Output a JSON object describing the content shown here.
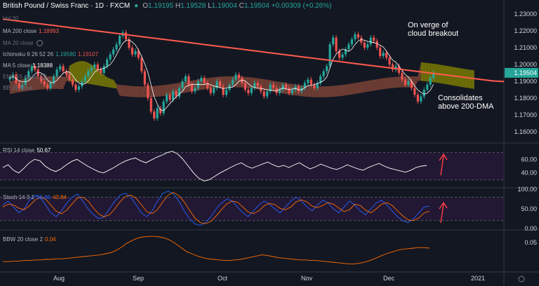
{
  "header": {
    "symbol": "British Pound / Swiss Franc · 1D · FXCM",
    "o_label": "O",
    "o": "1.19195",
    "h_label": "H",
    "h": "1.19528",
    "l_label": "L",
    "l": "1.19004",
    "c_label": "C",
    "c": "1.19504",
    "change": "+0.00309 (+0.26%)"
  },
  "indicators": {
    "vol": "Vol 20",
    "ma200_label": "MA 200 close",
    "ma200_value": "1.18993",
    "ma20_label": "MA 20 close",
    "ichimoku_label": "Ichimoku 9 26 52 26",
    "ichimoku_v1": "1.19580",
    "ichimoku_v2": "1.19107",
    "ma5_label": "MA 5 close",
    "ma5_value": "1.18388",
    "ema55_label": "EMA 55 close",
    "extra_label": "BB 20 close",
    "rsi_label": "RSI 14 close",
    "rsi_value": "50.67",
    "stoch_label": "Stoch 14 3 1",
    "stoch_k": "56.86",
    "stoch_d": "43.84",
    "bbw_label": "BBW 20 close 2",
    "bbw_value": "0.04"
  },
  "annotations": {
    "cloud_breakout": [
      "On verge of",
      "cloud breakout"
    ],
    "consolidates": [
      "Consolidates",
      "above 200-DMA"
    ]
  },
  "colors": {
    "background": "#131722",
    "up": "#26a69a",
    "down": "#ef5350",
    "ma200": "#ff5a4e",
    "cloud_bull": "#8a8a00",
    "cloud_bear": "#8a4a3a",
    "rsi_line": "#ffffff",
    "stoch_k": "#2962ff",
    "stoch_d": "#ff6d00",
    "bbw_line": "#ff6d00",
    "panel_fill": "#2a1a3a",
    "arrow": "#ff4040"
  },
  "chart_data": {
    "type": "line",
    "x_labels": [
      "Aug",
      "Sep",
      "Oct",
      "Nov",
      "Dec",
      "2021"
    ],
    "price_axis": {
      "ticks": [
        "1.23000",
        "1.22000",
        "1.21000",
        "1.20000",
        "1.19000",
        "1.18000",
        "1.17000",
        "1.16000"
      ],
      "ylim": [
        1.155,
        1.235
      ],
      "last_price": "1.19504"
    },
    "rsi_axis": {
      "ticks": [
        "60.00",
        "40.00"
      ],
      "ylim": [
        20,
        80
      ],
      "upper": 70,
      "lower": 30
    },
    "stoch_axis": {
      "ticks": [
        "100.00",
        "50.00",
        "0.00"
      ],
      "ylim": [
        0,
        100
      ],
      "upper": 80,
      "lower": 20
    },
    "bbw_axis": {
      "ticks": [
        "0.05"
      ],
      "ylim": [
        0,
        0.07
      ]
    },
    "price_close": [
      1.192,
      1.194,
      1.189,
      1.186,
      1.188,
      1.192,
      1.196,
      1.199,
      1.197,
      1.193,
      1.19,
      1.188,
      1.186,
      1.189,
      1.193,
      1.197,
      1.199,
      1.196,
      1.194,
      1.191,
      1.188,
      1.185,
      1.187,
      1.19,
      1.193,
      1.196,
      1.198,
      1.2,
      1.197,
      1.195,
      1.199,
      1.203,
      1.206,
      1.209,
      1.212,
      1.217,
      1.219,
      1.215,
      1.21,
      1.206,
      1.208,
      1.204,
      1.196,
      1.188,
      1.18,
      1.172,
      1.168,
      1.174,
      1.171,
      1.178,
      1.182,
      1.179,
      1.184,
      1.181,
      1.186,
      1.19,
      1.193,
      1.188,
      1.184,
      1.186,
      1.19,
      1.192,
      1.189,
      1.186,
      1.183,
      1.186,
      1.19,
      1.187,
      1.182,
      1.185,
      1.188,
      1.191,
      1.194,
      1.192,
      1.189,
      1.185,
      1.183,
      1.186,
      1.189,
      1.187,
      1.184,
      1.181,
      1.184,
      1.188,
      1.186,
      1.183,
      1.185,
      1.188,
      1.186,
      1.183,
      1.185,
      1.187,
      1.184,
      1.186,
      1.189,
      1.191,
      1.188,
      1.186,
      1.189,
      1.193,
      1.196,
      1.199,
      1.212,
      1.216,
      1.208,
      1.204,
      1.206,
      1.209,
      1.212,
      1.215,
      1.218,
      1.216,
      1.213,
      1.21,
      1.212,
      1.216,
      1.214,
      1.21,
      1.205,
      1.207,
      1.204,
      1.2,
      1.197,
      1.199,
      1.195,
      1.191,
      1.188,
      1.19,
      1.186,
      1.182,
      1.178,
      1.181,
      1.185,
      1.188,
      1.192,
      1.195
    ],
    "ma200": [
      1.227,
      1.2262,
      1.2254,
      1.2246,
      1.2238,
      1.223,
      1.2222,
      1.2214,
      1.2206,
      1.2198,
      1.219,
      1.2182,
      1.2174,
      1.2166,
      1.2158,
      1.215,
      1.2142,
      1.2134,
      1.2126,
      1.2118,
      1.211,
      1.2102,
      1.2094,
      1.2086,
      1.2078,
      1.207,
      1.2062,
      1.2054,
      1.2046,
      1.2038,
      1.203,
      1.2022,
      1.2014,
      1.2006,
      1.1998,
      1.199,
      1.1982,
      1.1974,
      1.1966,
      1.1958,
      1.195,
      1.1942,
      1.1934,
      1.1926,
      1.1918,
      1.191,
      1.1902,
      1.1899
    ],
    "rsi": [
      48,
      52,
      44,
      40,
      47,
      55,
      60,
      58,
      50,
      45,
      42,
      46,
      52,
      57,
      60,
      55,
      50,
      46,
      42,
      40,
      44,
      48,
      53,
      57,
      60,
      62,
      58,
      55,
      59,
      63,
      66,
      70,
      72,
      68,
      60,
      50,
      40,
      32,
      28,
      30,
      35,
      40,
      44,
      48,
      52,
      55,
      50,
      47,
      50,
      53,
      56,
      52,
      49,
      51,
      48,
      52,
      55,
      50,
      46,
      49,
      53,
      50,
      47,
      45,
      48,
      52,
      49,
      46,
      44,
      48,
      51,
      54,
      50,
      47,
      45,
      43,
      41,
      44,
      48,
      50,
      51
    ],
    "stoch_k": [
      60,
      70,
      55,
      40,
      50,
      72,
      85,
      80,
      60,
      40,
      30,
      45,
      65,
      80,
      88,
      70,
      50,
      35,
      25,
      30,
      50,
      70,
      85,
      90,
      80,
      60,
      40,
      30,
      45,
      70,
      90,
      95,
      88,
      70,
      45,
      25,
      12,
      8,
      15,
      30,
      50,
      65,
      75,
      70,
      55,
      40,
      30,
      45,
      60,
      70,
      62,
      50,
      40,
      55,
      70,
      80,
      70,
      55,
      45,
      60,
      72,
      65,
      50,
      40,
      55,
      70,
      60,
      45,
      35,
      50,
      65,
      72,
      60,
      45,
      30,
      20,
      15,
      25,
      40,
      55,
      57
    ],
    "stoch_d": [
      55,
      62,
      60,
      52,
      48,
      58,
      72,
      80,
      75,
      60,
      44,
      38,
      47,
      63,
      78,
      80,
      70,
      52,
      37,
      30,
      35,
      50,
      68,
      82,
      85,
      77,
      60,
      43,
      38,
      48,
      68,
      85,
      92,
      84,
      68,
      47,
      27,
      15,
      12,
      18,
      32,
      48,
      63,
      70,
      67,
      55,
      42,
      38,
      45,
      58,
      64,
      61,
      51,
      48,
      55,
      68,
      73,
      68,
      57,
      53,
      59,
      66,
      62,
      52,
      43,
      48,
      62,
      59,
      47,
      40,
      50,
      62,
      66,
      59,
      45,
      32,
      22,
      20,
      27,
      40,
      44
    ],
    "bbw": [
      0.016,
      0.016,
      0.017,
      0.017,
      0.018,
      0.018,
      0.019,
      0.019,
      0.02,
      0.02,
      0.021,
      0.021,
      0.022,
      0.023,
      0.024,
      0.025,
      0.026,
      0.027,
      0.028,
      0.03,
      0.032,
      0.036,
      0.042,
      0.049,
      0.054,
      0.058,
      0.06,
      0.061,
      0.061,
      0.06,
      0.058,
      0.054,
      0.048,
      0.041,
      0.034,
      0.03,
      0.026,
      0.023,
      0.021,
      0.02,
      0.019,
      0.018,
      0.018,
      0.019,
      0.02,
      0.022,
      0.024,
      0.026,
      0.028,
      0.027,
      0.025,
      0.023,
      0.022,
      0.021,
      0.02,
      0.019,
      0.019,
      0.018,
      0.018,
      0.017,
      0.016,
      0.015,
      0.014,
      0.013,
      0.012,
      0.012,
      0.013,
      0.015,
      0.018,
      0.022,
      0.026,
      0.03,
      0.033,
      0.036,
      0.038,
      0.039,
      0.04,
      0.041,
      0.041,
      0.04
    ]
  }
}
